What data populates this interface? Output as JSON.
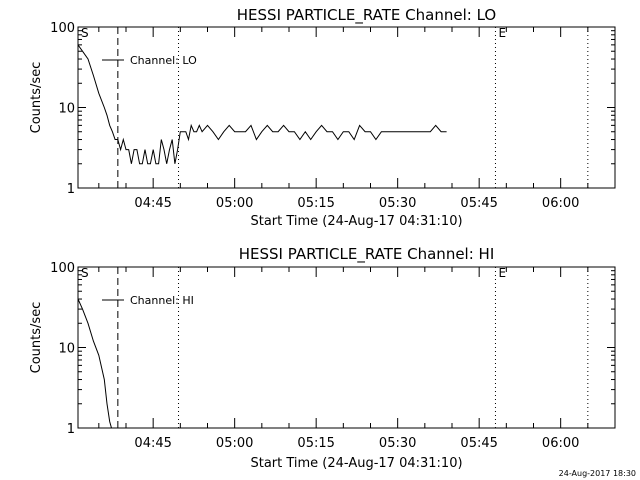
{
  "footer": {
    "stamp": "24-Aug-2017 18:30"
  },
  "chart_data": [
    {
      "type": "line",
      "title": "HESSI PARTICLE_RATE Channel: LO",
      "xlabel": "Start Time (24-Aug-17 04:31:10)",
      "ylabel": "Counts/sec",
      "y_scale": "log",
      "ylim": [
        1,
        100
      ],
      "xlim": [
        "04:31:10",
        "06:10:00"
      ],
      "x_ticks": [
        "04:45",
        "05:00",
        "05:15",
        "05:30",
        "05:45",
        "06:00"
      ],
      "y_ticks": [
        "1",
        "10",
        "100"
      ],
      "legend": {
        "entries": [
          "Channel: LO"
        ],
        "position": "top-left"
      },
      "markers": [
        {
          "label": "S",
          "x": "04:31:10",
          "style": "none"
        },
        {
          "label": "",
          "x": "04:38:30",
          "style": "dashed"
        },
        {
          "label": "",
          "x": "04:49:40",
          "style": "dotted"
        },
        {
          "label": "E",
          "x": "05:48:00",
          "style": "dotted"
        },
        {
          "label": "",
          "x": "06:05:00",
          "style": "dotted"
        }
      ],
      "series": [
        {
          "name": "Channel: LO",
          "x": [
            "04:31:10",
            "04:32:00",
            "04:33:00",
            "04:34:00",
            "04:35:00",
            "04:36:00",
            "04:36:30",
            "04:37:00",
            "04:37:30",
            "04:38:00",
            "04:38:30",
            "04:39:00",
            "04:39:30",
            "04:40:00",
            "04:40:30",
            "04:41:00",
            "04:41:30",
            "04:42:00",
            "04:42:30",
            "04:43:00",
            "04:43:30",
            "04:44:00",
            "04:44:30",
            "04:45:00",
            "04:45:30",
            "04:46:00",
            "04:46:30",
            "04:47:00",
            "04:47:30",
            "04:48:00",
            "04:48:30",
            "04:49:00",
            "04:49:30",
            "04:50:00",
            "04:50:30",
            "04:51:00",
            "04:51:30",
            "04:52:00",
            "04:52:30",
            "04:53:00",
            "04:53:30",
            "04:54:00",
            "04:55:00",
            "04:56:00",
            "04:57:00",
            "04:58:00",
            "04:59:00",
            "05:00:00",
            "05:01:00",
            "05:02:00",
            "05:03:00",
            "05:04:00",
            "05:05:00",
            "05:06:00",
            "05:07:00",
            "05:08:00",
            "05:09:00",
            "05:10:00",
            "05:11:00",
            "05:12:00",
            "05:13:00",
            "05:14:00",
            "05:15:00",
            "05:16:00",
            "05:17:00",
            "05:18:00",
            "05:19:00",
            "05:20:00",
            "05:21:00",
            "05:22:00",
            "05:23:00",
            "05:24:00",
            "05:25:00",
            "05:26:00",
            "05:27:00",
            "05:28:00",
            "05:29:00",
            "05:30:00",
            "05:31:00",
            "05:32:00",
            "05:33:00",
            "05:34:00",
            "05:35:00",
            "05:36:00",
            "05:37:00",
            "05:38:00",
            "05:39:00"
          ],
          "values": [
            60,
            50,
            40,
            25,
            15,
            10,
            8,
            6,
            5,
            4,
            4,
            3,
            4,
            3,
            3,
            2,
            3,
            3,
            2,
            2,
            3,
            2,
            2,
            3,
            2,
            2,
            4,
            3,
            2,
            3,
            4,
            2,
            3,
            5,
            5,
            5,
            4,
            6,
            5,
            5,
            6,
            5,
            6,
            5,
            4,
            5,
            6,
            5,
            5,
            5,
            6,
            4,
            5,
            6,
            5,
            5,
            6,
            5,
            5,
            4,
            5,
            4,
            5,
            6,
            5,
            5,
            4,
            5,
            5,
            4,
            6,
            5,
            5,
            4,
            5,
            5,
            5,
            5,
            5,
            5,
            5,
            5,
            5,
            5,
            6,
            5,
            5
          ]
        }
      ]
    },
    {
      "type": "line",
      "title": "HESSI PARTICLE_RATE Channel: HI",
      "xlabel": "Start Time (24-Aug-17 04:31:10)",
      "ylabel": "Counts/sec",
      "y_scale": "log",
      "ylim": [
        1,
        100
      ],
      "xlim": [
        "04:31:10",
        "06:10:00"
      ],
      "x_ticks": [
        "04:45",
        "05:00",
        "05:15",
        "05:30",
        "05:45",
        "06:00"
      ],
      "y_ticks": [
        "1",
        "10",
        "100"
      ],
      "legend": {
        "entries": [
          "Channel: HI"
        ],
        "position": "top-left"
      },
      "markers": [
        {
          "label": "S",
          "x": "04:31:10",
          "style": "none"
        },
        {
          "label": "",
          "x": "04:38:30",
          "style": "dashed"
        },
        {
          "label": "",
          "x": "04:49:40",
          "style": "dotted"
        },
        {
          "label": "E",
          "x": "05:48:00",
          "style": "dotted"
        },
        {
          "label": "",
          "x": "06:05:00",
          "style": "dotted"
        }
      ],
      "series": [
        {
          "name": "Channel: HI",
          "x": [
            "04:31:10",
            "04:32:00",
            "04:33:00",
            "04:34:00",
            "04:35:00",
            "04:36:00",
            "04:36:30",
            "04:37:00",
            "04:37:20"
          ],
          "values": [
            40,
            30,
            20,
            12,
            8,
            4,
            2,
            1.2,
            1.0
          ]
        }
      ]
    }
  ]
}
